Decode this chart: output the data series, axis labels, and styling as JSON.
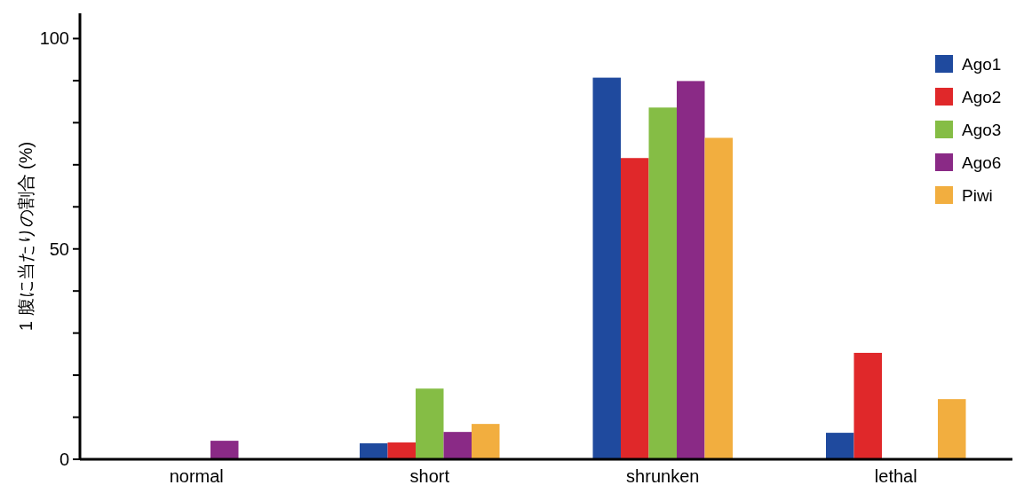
{
  "chart_data": {
    "type": "bar",
    "ylabel": "1 腹に当たりの割合 (%)",
    "categories": [
      "normal",
      "short",
      "shrunken",
      "lethal"
    ],
    "series": [
      {
        "name": "Ago1",
        "color": "#1f4a9e",
        "values": [
          0,
          3.8,
          90.7,
          6.3
        ]
      },
      {
        "name": "Ago2",
        "color": "#e0282a",
        "values": [
          0,
          4,
          71.6,
          25.3
        ]
      },
      {
        "name": "Ago3",
        "color": "#85bd45",
        "values": [
          0,
          16.8,
          83.6,
          0
        ]
      },
      {
        "name": "Ago6",
        "color": "#8a2a86",
        "values": [
          4.4,
          6.5,
          89.9,
          0
        ]
      },
      {
        "name": "Piwi",
        "color": "#f2ae3f",
        "values": [
          0,
          8.4,
          76.4,
          14.3
        ]
      }
    ],
    "ylim": [
      0,
      106
    ],
    "yticks": [
      0,
      {
        "value": 10,
        "label": null
      },
      {
        "value": 20,
        "label": null
      },
      {
        "value": 30,
        "label": null
      },
      {
        "value": 40,
        "label": null
      },
      50,
      {
        "value": 60,
        "label": null
      },
      {
        "value": 70,
        "label": null
      },
      {
        "value": 80,
        "label": null
      },
      {
        "value": 90,
        "label": null
      },
      100
    ],
    "legend": "top right"
  }
}
